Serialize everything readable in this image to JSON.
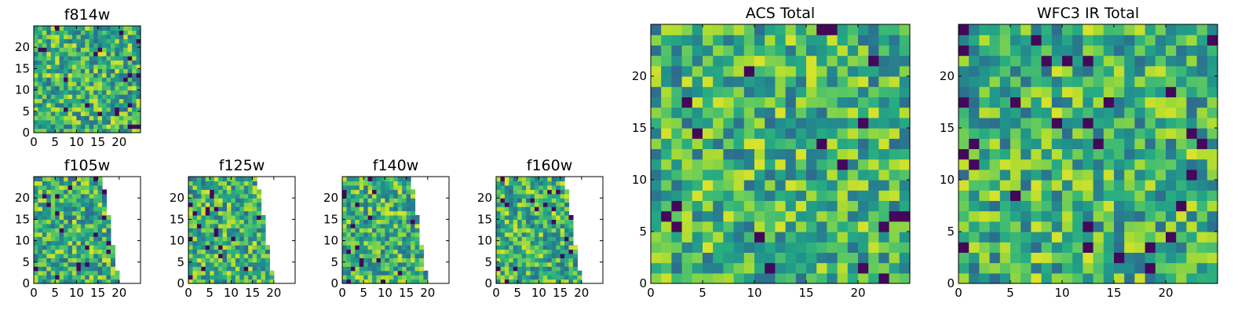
{
  "chart_data": [
    {
      "id": "f814w",
      "type": "heatmap",
      "title": "f814w",
      "colormap": "viridis",
      "extent": [
        0,
        25,
        0,
        25
      ],
      "xticks": [
        0,
        5,
        10,
        15,
        20
      ],
      "yticks": [
        0,
        5,
        10,
        15,
        20
      ],
      "xlim": [
        0,
        25
      ],
      "ylim": [
        0,
        25
      ],
      "grid": false,
      "coverage": "full"
    },
    {
      "id": "acs-total",
      "type": "heatmap",
      "title": "ACS Total",
      "colormap": "viridis",
      "extent": [
        0,
        25,
        0,
        25
      ],
      "xticks": [
        0,
        5,
        10,
        15,
        20
      ],
      "yticks": [
        0,
        5,
        10,
        15,
        20
      ],
      "xlim": [
        0,
        25
      ],
      "ylim": [
        0,
        25
      ],
      "grid": false,
      "coverage": "full"
    },
    {
      "id": "wfc3-ir-total",
      "type": "heatmap",
      "title": "WFC3 IR Total",
      "colormap": "viridis",
      "extent": [
        0,
        25,
        0,
        25
      ],
      "xticks": [
        0,
        5,
        10,
        15,
        20
      ],
      "yticks": [
        0,
        5,
        10,
        15,
        20
      ],
      "xlim": [
        0,
        25
      ],
      "ylim": [
        0,
        25
      ],
      "grid": false,
      "coverage": "full"
    },
    {
      "id": "f105w",
      "type": "heatmap",
      "title": "f105w",
      "colormap": "viridis",
      "extent": [
        0,
        25,
        0,
        25
      ],
      "xticks": [
        0,
        5,
        10,
        15,
        20
      ],
      "yticks": [
        0,
        5,
        10,
        15,
        20
      ],
      "xlim": [
        0,
        25
      ],
      "ylim": [
        0,
        25
      ],
      "grid": false,
      "coverage": "partial",
      "coverage_right_edge_top": 16,
      "coverage_right_edge_bottom": 20
    },
    {
      "id": "f125w",
      "type": "heatmap",
      "title": "f125w",
      "colormap": "viridis",
      "extent": [
        0,
        25,
        0,
        25
      ],
      "xticks": [
        0,
        5,
        10,
        15,
        20
      ],
      "yticks": [
        0,
        5,
        10,
        15,
        20
      ],
      "xlim": [
        0,
        25
      ],
      "ylim": [
        0,
        25
      ],
      "grid": false,
      "coverage": "partial",
      "coverage_right_edge_top": 16,
      "coverage_right_edge_bottom": 20
    },
    {
      "id": "f140w",
      "type": "heatmap",
      "title": "f140w",
      "colormap": "viridis",
      "extent": [
        0,
        25,
        0,
        25
      ],
      "xticks": [
        0,
        5,
        10,
        15,
        20
      ],
      "yticks": [
        0,
        5,
        10,
        15,
        20
      ],
      "xlim": [
        0,
        25
      ],
      "ylim": [
        0,
        25
      ],
      "grid": false,
      "coverage": "partial",
      "coverage_right_edge_top": 16,
      "coverage_right_edge_bottom": 20
    },
    {
      "id": "f160w",
      "type": "heatmap",
      "title": "f160w",
      "colormap": "viridis",
      "extent": [
        0,
        25,
        0,
        25
      ],
      "xticks": [
        0,
        5,
        10,
        15,
        20
      ],
      "yticks": [
        0,
        5,
        10,
        15,
        20
      ],
      "xlim": [
        0,
        25
      ],
      "ylim": [
        0,
        25
      ],
      "grid": false,
      "coverage": "partial",
      "coverage_right_edge_top": 16,
      "coverage_right_edge_bottom": 20
    }
  ]
}
